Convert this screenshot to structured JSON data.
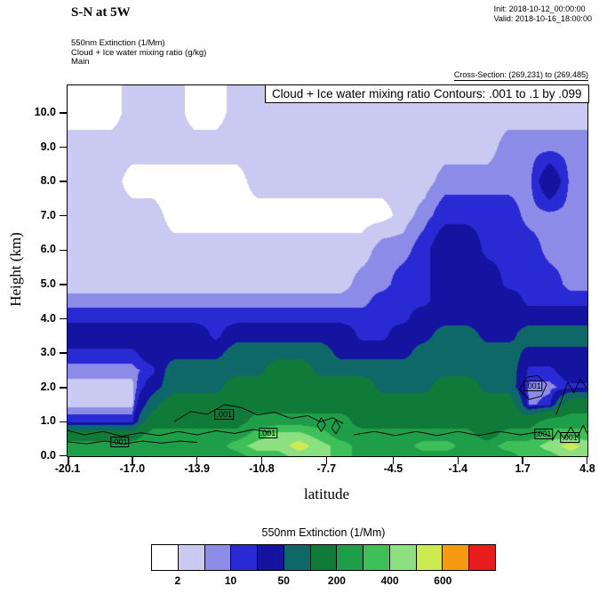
{
  "header": {
    "title": "S-N at 5W",
    "init_label": "Init: 2018-10-12_00:00:00",
    "valid_label": "Valid: 2018-10-16_18:00:00",
    "field_lines": [
      "550nm Extinction  (1/Mm)",
      "Cloud + Ice water mixing ratio  (g/kg)",
      "Main"
    ],
    "cross_section": "Cross-Section: (269,231) to (269,485)"
  },
  "chart_data": {
    "type": "heatmap",
    "title": "Cloud + Ice water mixing ratio Contours: .001 to .1 by .099",
    "xlabel": "latitude",
    "ylabel": "Height (km)",
    "field_name": "550nm Extinction (1/Mm)",
    "xlim": [
      -20.1,
      4.8
    ],
    "ylim": [
      0,
      10.8
    ],
    "x_ticks": [
      -20.1,
      -17.0,
      -13.9,
      -10.8,
      -7.7,
      -4.5,
      -1.4,
      1.7,
      4.8
    ],
    "x_tick_labels": [
      "-20.1",
      "-17.0",
      "-13.9",
      "-10.8",
      "-7.7",
      "-4.5",
      "-1.4",
      "1.7",
      "4.8"
    ],
    "y_ticks": [
      0,
      1,
      2,
      3,
      4,
      5,
      6,
      7,
      8,
      9,
      10
    ],
    "y_tick_labels": [
      "0.0",
      "1.0",
      "2.0",
      "3.0",
      "4.0",
      "5.0",
      "6.0",
      "7.0",
      "8.0",
      "9.0",
      "10.0"
    ],
    "grid_on": false,
    "levels": [
      2,
      5,
      10,
      20,
      50,
      100,
      200,
      300,
      400,
      500,
      600,
      800
    ],
    "colors": [
      "#ffffff",
      "#c9c9f2",
      "#8c8ce8",
      "#2a2ad4",
      "#1414a0",
      "#0e6868",
      "#107a38",
      "#1f9e4a",
      "#3fbf58",
      "#8ce080",
      "#cdea50",
      "#f59a10",
      "#e81c1c"
    ],
    "grid": {
      "x": [
        -20.1,
        -19,
        -18,
        -17,
        -16,
        -15,
        -14,
        -13,
        -12,
        -11,
        -10,
        -9,
        -8,
        -7,
        -6,
        -5,
        -4,
        -3,
        -2,
        -1,
        0,
        1,
        2,
        3,
        4,
        4.8
      ],
      "z": [
        0,
        0.3,
        0.6,
        1.0,
        1.5,
        2.0,
        2.5,
        3.0,
        3.5,
        4.0,
        4.5,
        5.0,
        6.0,
        7.0,
        8.0,
        9.0,
        10.0,
        10.8
      ],
      "values": [
        [
          250,
          250,
          250,
          250,
          250,
          250,
          250,
          250,
          250,
          350,
          350,
          450,
          450,
          350,
          250,
          250,
          250,
          250,
          250,
          250,
          250,
          250,
          350,
          350,
          450,
          450
        ],
        [
          250,
          250,
          250,
          250,
          250,
          250,
          250,
          250,
          350,
          450,
          450,
          550,
          450,
          350,
          250,
          250,
          250,
          350,
          350,
          250,
          250,
          350,
          350,
          450,
          550,
          450
        ],
        [
          150,
          150,
          150,
          150,
          250,
          250,
          250,
          250,
          250,
          350,
          450,
          450,
          350,
          250,
          250,
          250,
          250,
          250,
          250,
          250,
          150,
          250,
          250,
          350,
          350,
          350
        ],
        [
          15,
          15,
          15,
          15,
          150,
          150,
          150,
          150,
          150,
          250,
          250,
          250,
          250,
          250,
          150,
          150,
          150,
          150,
          150,
          150,
          150,
          150,
          150,
          250,
          250,
          250
        ],
        [
          3,
          3,
          3,
          3,
          75,
          150,
          150,
          150,
          150,
          150,
          150,
          150,
          150,
          150,
          150,
          150,
          150,
          150,
          150,
          150,
          150,
          150,
          7,
          15,
          150,
          150
        ],
        [
          3,
          3,
          3,
          3,
          35,
          75,
          75,
          75,
          150,
          150,
          150,
          150,
          150,
          150,
          150,
          75,
          75,
          75,
          150,
          150,
          75,
          75,
          7,
          7,
          15,
          15
        ],
        [
          7,
          7,
          7,
          7,
          15,
          75,
          75,
          75,
          75,
          75,
          150,
          150,
          75,
          75,
          75,
          75,
          75,
          75,
          75,
          75,
          75,
          75,
          15,
          15,
          35,
          35
        ],
        [
          15,
          15,
          15,
          15,
          35,
          35,
          35,
          35,
          75,
          75,
          75,
          75,
          75,
          35,
          35,
          35,
          35,
          75,
          75,
          75,
          75,
          75,
          35,
          35,
          35,
          35
        ],
        [
          35,
          35,
          35,
          35,
          35,
          35,
          35,
          15,
          35,
          35,
          35,
          35,
          35,
          35,
          15,
          15,
          35,
          35,
          75,
          75,
          35,
          35,
          75,
          75,
          75,
          75
        ],
        [
          15,
          15,
          15,
          15,
          15,
          15,
          15,
          15,
          15,
          15,
          15,
          15,
          15,
          15,
          15,
          15,
          15,
          35,
          35,
          35,
          35,
          35,
          35,
          35,
          35,
          35
        ],
        [
          7,
          7,
          7,
          7,
          7,
          7,
          7,
          7,
          7,
          7,
          7,
          7,
          7,
          7,
          7,
          15,
          15,
          15,
          35,
          35,
          35,
          35,
          15,
          15,
          15,
          15
        ],
        [
          3,
          3,
          3,
          3,
          3,
          3,
          3,
          3,
          3,
          3,
          3,
          3,
          3,
          3,
          7,
          7,
          15,
          15,
          35,
          35,
          35,
          15,
          15,
          15,
          7,
          7
        ],
        [
          3,
          3,
          3,
          3,
          3,
          3,
          3,
          3,
          3,
          3,
          3,
          3,
          3,
          3,
          3,
          7,
          7,
          15,
          35,
          35,
          15,
          15,
          15,
          7,
          7,
          7
        ],
        [
          3,
          3,
          3,
          3,
          3,
          1,
          1,
          1,
          1,
          1,
          1,
          1,
          1,
          1,
          1,
          1,
          3,
          7,
          15,
          15,
          15,
          15,
          7,
          7,
          7,
          7
        ],
        [
          3,
          3,
          3,
          1,
          1,
          1,
          1,
          1,
          1,
          3,
          3,
          3,
          3,
          3,
          3,
          3,
          3,
          3,
          7,
          7,
          7,
          7,
          7,
          35,
          7,
          7
        ],
        [
          3,
          3,
          3,
          3,
          3,
          3,
          3,
          3,
          3,
          3,
          3,
          3,
          3,
          3,
          3,
          3,
          3,
          3,
          3,
          3,
          3,
          7,
          7,
          7,
          7,
          7
        ],
        [
          1,
          1,
          1,
          3,
          3,
          3,
          1,
          1,
          3,
          3,
          3,
          3,
          3,
          3,
          3,
          3,
          3,
          3,
          3,
          3,
          3,
          3,
          3,
          3,
          3,
          3
        ],
        [
          1,
          1,
          1,
          3,
          3,
          3,
          1,
          1,
          3,
          3,
          3,
          3,
          3,
          3,
          3,
          3,
          3,
          3,
          3,
          3,
          3,
          3,
          3,
          3,
          3,
          3
        ]
      ]
    },
    "contour_series": {
      "name": "Cloud + Ice water mixing ratio (g/kg)",
      "levels": [
        0.001,
        0.1
      ],
      "paths": [
        [
          [
            -20.1,
            0.75
          ],
          [
            -19.3,
            0.62
          ],
          [
            -18.4,
            0.72
          ],
          [
            -17.5,
            0.58
          ],
          [
            -16.6,
            0.68
          ],
          [
            -15.7,
            0.6
          ],
          [
            -14.8,
            0.72
          ],
          [
            -13.9,
            0.62
          ],
          [
            -13.0,
            0.74
          ],
          [
            -12.1,
            0.66
          ],
          [
            -11.2,
            0.78
          ],
          [
            -10.4,
            0.7
          ]
        ],
        [
          [
            -20.1,
            0.42
          ],
          [
            -19.2,
            0.36
          ],
          [
            -18.3,
            0.44
          ],
          [
            -17.4,
            0.36
          ],
          [
            -16.5,
            0.44
          ],
          [
            -15.6,
            0.38
          ],
          [
            -14.7,
            0.44
          ],
          [
            -13.9,
            0.4
          ]
        ],
        [
          [
            -15.0,
            1.0
          ],
          [
            -14.2,
            1.3
          ],
          [
            -13.4,
            1.22
          ],
          [
            -12.6,
            1.5
          ],
          [
            -11.8,
            1.42
          ],
          [
            -11.0,
            1.2
          ],
          [
            -10.2,
            1.28
          ],
          [
            -9.4,
            1.1
          ],
          [
            -8.6,
            1.18
          ],
          [
            -8.0,
            1.0
          ],
          [
            -7.4,
            1.12
          ],
          [
            -6.9,
            0.95
          ]
        ],
        [
          [
            -8.15,
            0.9
          ],
          [
            -7.95,
            1.12
          ],
          [
            -7.75,
            0.92
          ],
          [
            -7.95,
            0.72
          ],
          [
            -8.15,
            0.9
          ]
        ],
        [
          [
            -7.45,
            0.82
          ],
          [
            -7.25,
            1.05
          ],
          [
            -7.05,
            0.85
          ],
          [
            -7.25,
            0.65
          ],
          [
            -7.45,
            0.82
          ]
        ],
        [
          [
            1.55,
            1.95
          ],
          [
            1.9,
            2.3
          ],
          [
            2.4,
            2.35
          ],
          [
            2.85,
            2.1
          ],
          [
            2.6,
            1.75
          ],
          [
            2.0,
            1.65
          ],
          [
            1.55,
            1.95
          ]
        ],
        [
          [
            3.1,
            0.45
          ],
          [
            3.4,
            0.75
          ],
          [
            3.7,
            0.5
          ],
          [
            4.0,
            0.85
          ],
          [
            4.3,
            0.55
          ],
          [
            4.6,
            0.9
          ],
          [
            4.8,
            0.65
          ]
        ],
        [
          [
            3.3,
            1.2
          ],
          [
            3.6,
            1.7
          ],
          [
            3.85,
            2.15
          ],
          [
            4.15,
            1.85
          ],
          [
            4.45,
            2.25
          ],
          [
            4.8,
            1.95
          ]
        ],
        [
          [
            -6.4,
            0.62
          ],
          [
            -5.4,
            0.72
          ],
          [
            -4.4,
            0.6
          ],
          [
            -3.4,
            0.72
          ],
          [
            -2.4,
            0.6
          ],
          [
            -1.4,
            0.72
          ],
          [
            -0.4,
            0.6
          ],
          [
            0.6,
            0.72
          ],
          [
            1.6,
            0.62
          ],
          [
            2.4,
            0.7
          ],
          [
            3.0,
            0.6
          ]
        ]
      ],
      "labels": [
        {
          "text": ".001",
          "x": -17.6,
          "y": 0.42
        },
        {
          "text": ".001",
          "x": -12.6,
          "y": 1.22
        },
        {
          "text": ".001",
          "x": -10.5,
          "y": 0.68
        },
        {
          "text": ".001",
          "x": 2.2,
          "y": 2.05
        },
        {
          "text": ".001",
          "x": 2.7,
          "y": 0.66
        },
        {
          "text": ".001",
          "x": 3.95,
          "y": 0.55
        }
      ]
    },
    "colorbar": {
      "title": "550nm Extinction  (1/Mm)",
      "tick_labels": [
        "2",
        "10",
        "50",
        "200",
        "400",
        "600"
      ],
      "tick_positions": [
        1,
        3,
        5,
        7,
        9,
        11
      ]
    }
  }
}
